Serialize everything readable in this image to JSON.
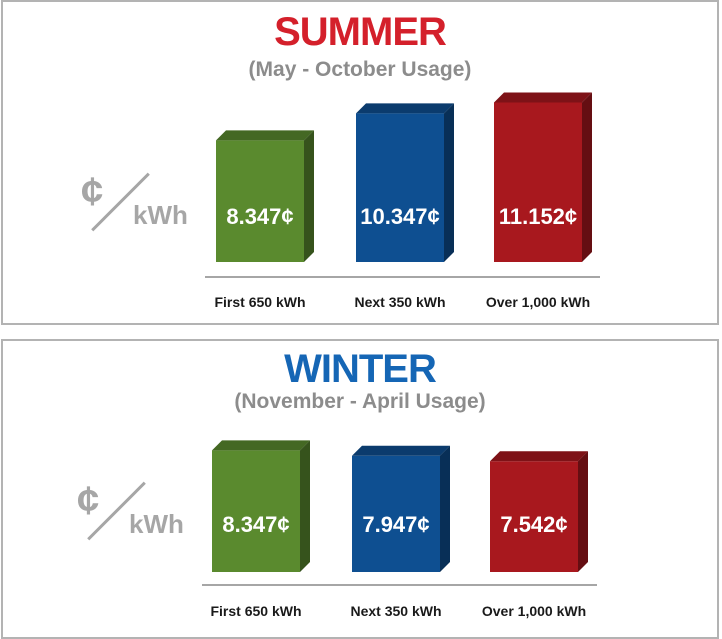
{
  "chart_data": [
    {
      "type": "bar",
      "title": "SUMMER",
      "subtitle": "(May - October Usage)",
      "unit_symbol": "¢",
      "unit_text": "kWh",
      "categories": [
        "First 650 kWh",
        "Next 350 kWh",
        "Over 1,000 kWh"
      ],
      "values": [
        8.347,
        10.347,
        11.152
      ],
      "value_labels": [
        "8.347¢",
        "10.347¢",
        "11.152¢"
      ],
      "bar_colors": [
        "#5a8a2e",
        "#0e4f91",
        "#a8181e"
      ],
      "title_color": "#d4202b",
      "grid": false
    },
    {
      "type": "bar",
      "title": "WINTER",
      "subtitle": "(November - April Usage)",
      "unit_symbol": "¢",
      "unit_text": "kWh",
      "categories": [
        "First 650 kWh",
        "Next 350 kWh",
        "Over 1,000 kWh"
      ],
      "values": [
        8.347,
        7.947,
        7.542
      ],
      "value_labels": [
        "8.347¢",
        "7.947¢",
        "7.542¢"
      ],
      "bar_colors": [
        "#5a8a2e",
        "#0e4f91",
        "#a8181e"
      ],
      "title_color": "#1566b5",
      "grid": false
    }
  ]
}
